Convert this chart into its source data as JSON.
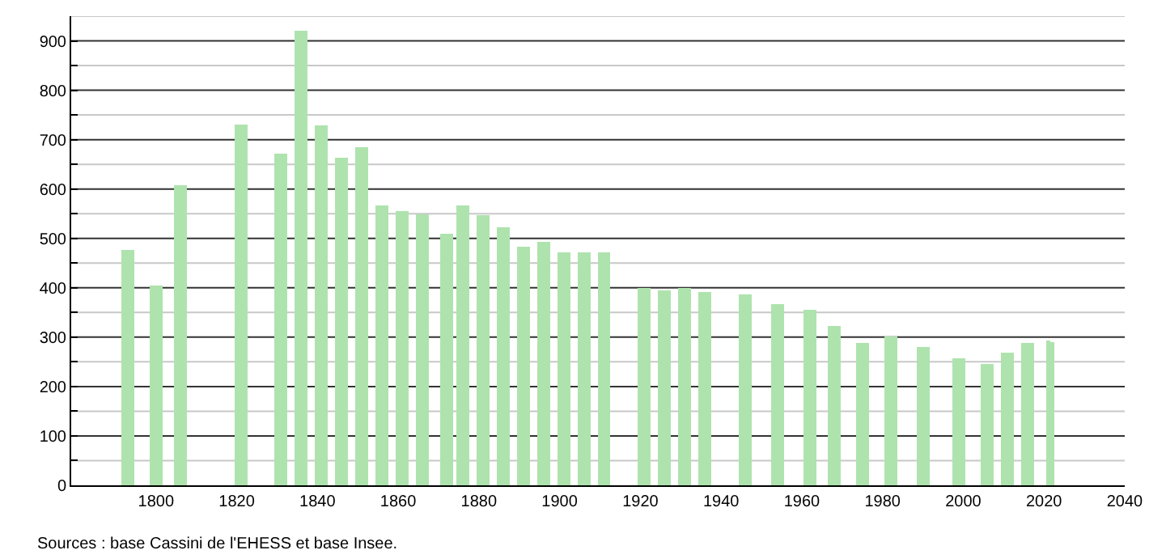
{
  "chart_data": {
    "type": "bar",
    "color": "#aee3ae",
    "x": [
      1793,
      1800,
      1806,
      1821,
      1831,
      1836,
      1841,
      1846,
      1851,
      1856,
      1861,
      1866,
      1872,
      1876,
      1881,
      1886,
      1891,
      1896,
      1901,
      1906,
      1911,
      1921,
      1926,
      1931,
      1936,
      1946,
      1954,
      1962,
      1968,
      1975,
      1982,
      1990,
      1999,
      2006,
      2011,
      2016,
      2021,
      2022
    ],
    "values": [
      477,
      404,
      608,
      730,
      672,
      920,
      729,
      664,
      684,
      566,
      555,
      549,
      509,
      567,
      547,
      522,
      483,
      493,
      471,
      471,
      471,
      400,
      394,
      400,
      391,
      387,
      367,
      356,
      322,
      289,
      302,
      280,
      257,
      246,
      268,
      289,
      293,
      290
    ],
    "xlim": [
      1779,
      2040
    ],
    "xticks": [
      1800,
      1820,
      1840,
      1860,
      1880,
      1900,
      1920,
      1940,
      1960,
      1980,
      2000,
      2020,
      2040
    ],
    "ylim": [
      0,
      950
    ],
    "yticks": [
      0,
      {
        "value": 50,
        "label": null
      },
      100,
      {
        "value": 150,
        "label": null
      },
      200,
      {
        "value": 250,
        "label": null
      },
      300,
      {
        "value": 350,
        "label": null
      },
      400,
      {
        "value": 450,
        "label": null
      },
      500,
      {
        "value": 550,
        "label": null
      },
      600,
      {
        "value": 650,
        "label": null
      },
      700,
      {
        "value": 750,
        "label": null
      },
      800,
      {
        "value": 850,
        "label": null
      },
      900,
      {
        "value": 950,
        "label": null
      }
    ],
    "grid": "y",
    "annotations": [
      "Sources : base Cassini de l'EHESS et base Insee."
    ]
  }
}
